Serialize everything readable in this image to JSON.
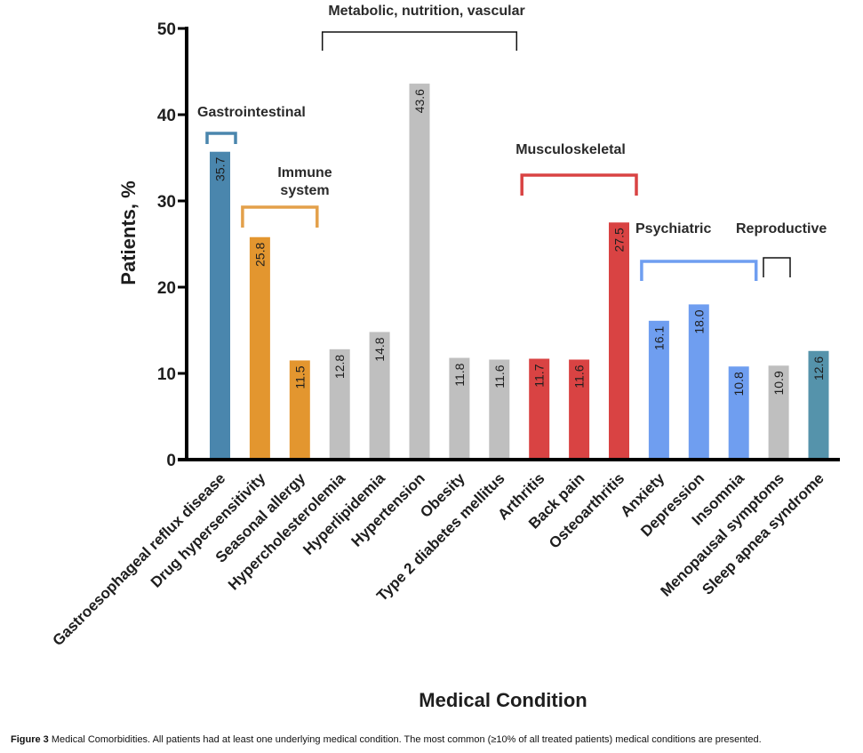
{
  "chart_data": {
    "type": "bar",
    "title": "",
    "xlabel": "Medical Condition",
    "ylabel": "Patients, %",
    "ylim": [
      0,
      50
    ],
    "yticks": [
      0,
      10,
      20,
      30,
      40,
      50
    ],
    "grid": false,
    "categories": [
      "Gastroesophageal reflux disease",
      "Drug hypersensitivity",
      "Seasonal allergy",
      "Hypercholesterolemia",
      "Hyperlipidemia",
      "Hypertension",
      "Obesity",
      "Type 2 diabetes mellitus",
      "Arthritis",
      "Back pain",
      "Osteoarthritis",
      "Anxiety",
      "Depression",
      "Insomnia",
      "Menopausal symptoms",
      "Sleep apnea syndrome"
    ],
    "values": [
      35.7,
      25.8,
      11.5,
      12.8,
      14.8,
      43.6,
      11.8,
      11.6,
      11.7,
      11.6,
      27.5,
      16.1,
      18.0,
      10.8,
      10.9,
      12.6
    ],
    "value_labels": [
      "35.7",
      "25.8",
      "11.5",
      "12.8",
      "14.8",
      "43.6",
      "11.8",
      "11.6",
      "11.7",
      "11.6",
      "27.5",
      "16.1",
      "18.0",
      "10.8",
      "10.9",
      "12.6"
    ],
    "bar_colors": [
      "#4a86ad",
      "#e3962f",
      "#e3962f",
      "#bfbfbf",
      "#bfbfbf",
      "#bfbfbf",
      "#bfbfbf",
      "#bfbfbf",
      "#d94343",
      "#d94343",
      "#d94343",
      "#6f9ef0",
      "#6f9ef0",
      "#6f9ef0",
      "#bfbfbf",
      "#5593ab"
    ],
    "groups": [
      {
        "label": "Gastrointestinal",
        "label_lines": [
          "Gastrointestinal"
        ],
        "first": 0,
        "last": 0,
        "color": "#4a86ad"
      },
      {
        "label": "Immune system",
        "label_lines": [
          "Immune",
          "system"
        ],
        "first": 1,
        "last": 2,
        "color": "#e3a04a"
      },
      {
        "label": "Metabolic, nutrition, vascular",
        "label_lines": [
          "Metabolic, nutrition, vascular"
        ],
        "first": 3,
        "last": 7,
        "color": "#111111"
      },
      {
        "label": "Musculoskeletal",
        "label_lines": [
          "Musculoskeletal"
        ],
        "first": 8,
        "last": 10,
        "color": "#d94343"
      },
      {
        "label": "Psychiatric",
        "label_lines": [
          "Psychiatric"
        ],
        "first": 11,
        "last": 13,
        "color": "#6f9ef0"
      },
      {
        "label": "Reproductive",
        "label_lines": [
          "Reproductive"
        ],
        "first": 14,
        "last": 14,
        "color": "#111111"
      }
    ],
    "legend": "none"
  },
  "caption": {
    "figure_label": "Figure 3",
    "text": " Medical Comorbidities. All patients had at least one underlying medical condition. The most common (≥10% of all treated patients) medical conditions are presented."
  }
}
